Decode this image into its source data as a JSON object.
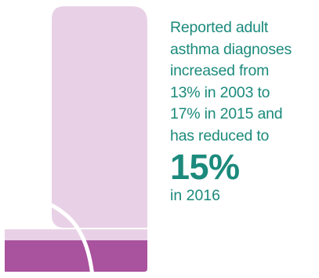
{
  "colors": {
    "text": "#1b8a7c",
    "inhaler_light": "#e8d1e6",
    "inhaler_dark": "#a9529e"
  },
  "illustration": {
    "icon": "asthma-inhaler-icon"
  },
  "fact": {
    "lines": [
      "Reported adult",
      "asthma diagnoses",
      "increased from",
      "13% in 2003 to",
      "17% in 2015 and",
      "has reduced to"
    ],
    "highlight": "15%",
    "tail": "in 2016"
  }
}
